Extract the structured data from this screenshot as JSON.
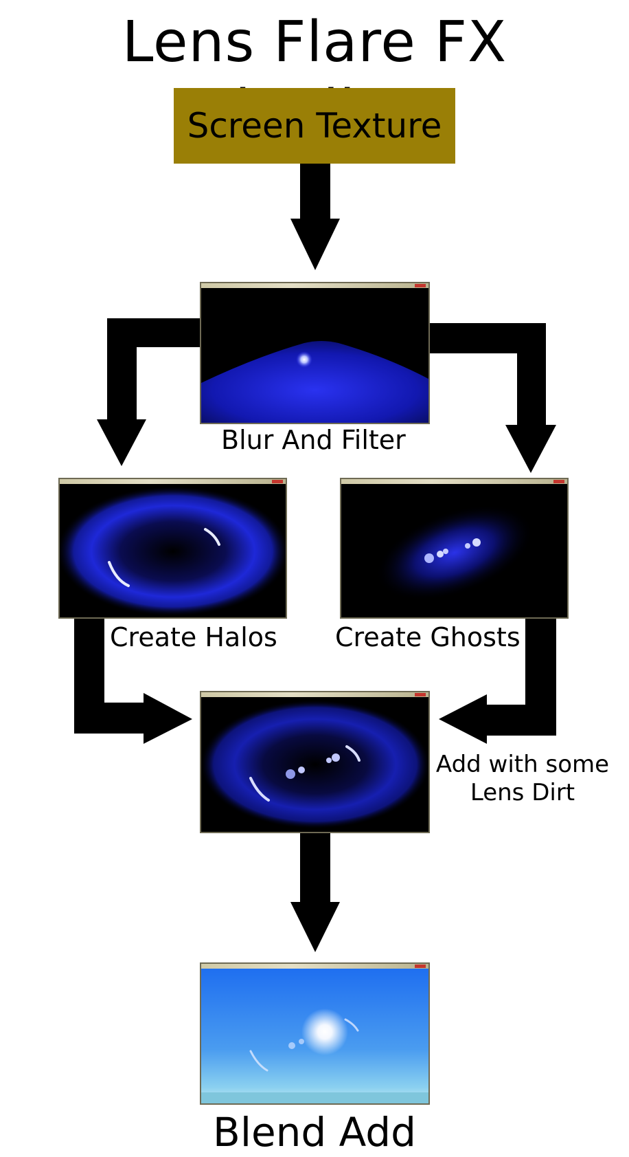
{
  "title": "Lens Flare FX Pipeline",
  "source": {
    "label": "Screen Texture",
    "color": "#9a7f06"
  },
  "stages": {
    "blur": {
      "label": "Blur And Filter"
    },
    "halos": {
      "label": "Create Halos"
    },
    "ghosts": {
      "label": "Create Ghosts"
    },
    "combine": {
      "label_line1": "Add with some",
      "label_line2": "Lens Dirt"
    },
    "final": {
      "label": "Blend Add"
    }
  },
  "colors": {
    "arrow": "#000000",
    "flare_blue": "#1a22d8",
    "sky_blue": "#2e8cf0"
  }
}
